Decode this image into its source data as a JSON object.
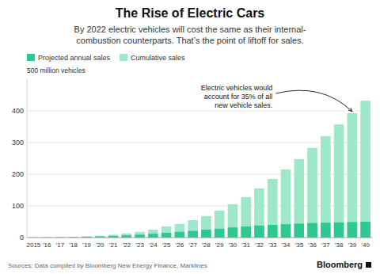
{
  "chart_data": {
    "type": "bar",
    "title": "The Rise of Electric Cars",
    "subtitle": "By 2022 electric vehicles will cost the same as their internal-\ncombustion counterparts. That’s the point of liftoff for sales.",
    "ylabel": "500 million vehicles",
    "source": "Sources: Data compiled by Bloomberg New Energy Finance, Marklines",
    "credit": "Bloomberg",
    "annotations": [
      {
        "text": "Electric vehicles would\naccount for 35% of all\nnew vehicle sales.",
        "category": "’39",
        "value": 393
      }
    ],
    "categories": [
      "2015",
      "’16",
      "’17",
      "’18",
      "’19",
      "’20",
      "’21",
      "’22",
      "’23",
      "’24",
      "’25",
      "’26",
      "’27",
      "’28",
      "’29",
      "’30",
      "’31",
      "’32",
      "’33",
      "’34",
      "’35",
      "’36",
      "’37",
      "’38",
      "’39",
      "’40"
    ],
    "series": [
      {
        "name": "Projected annual sales",
        "color": "#2dc98e",
        "values": [
          0.5,
          0.8,
          1.0,
          1.5,
          2.5,
          3.5,
          5,
          7,
          9,
          12,
          15,
          18,
          21,
          25,
          28,
          32,
          35,
          38,
          40,
          42,
          44,
          46,
          47,
          48,
          49,
          50
        ]
      },
      {
        "name": "Cumulative sales",
        "color": "#9de8c8",
        "values": [
          0.5,
          1.0,
          1.5,
          2.5,
          4,
          6,
          9,
          13,
          18,
          25,
          35,
          43,
          55,
          68,
          85,
          105,
          128,
          155,
          185,
          215,
          248,
          283,
          320,
          357,
          393,
          432
        ]
      }
    ],
    "ylim": [
      0,
      500
    ],
    "yticks": [
      0,
      100,
      200,
      300,
      400
    ],
    "grid": true,
    "legend": "top-left"
  }
}
